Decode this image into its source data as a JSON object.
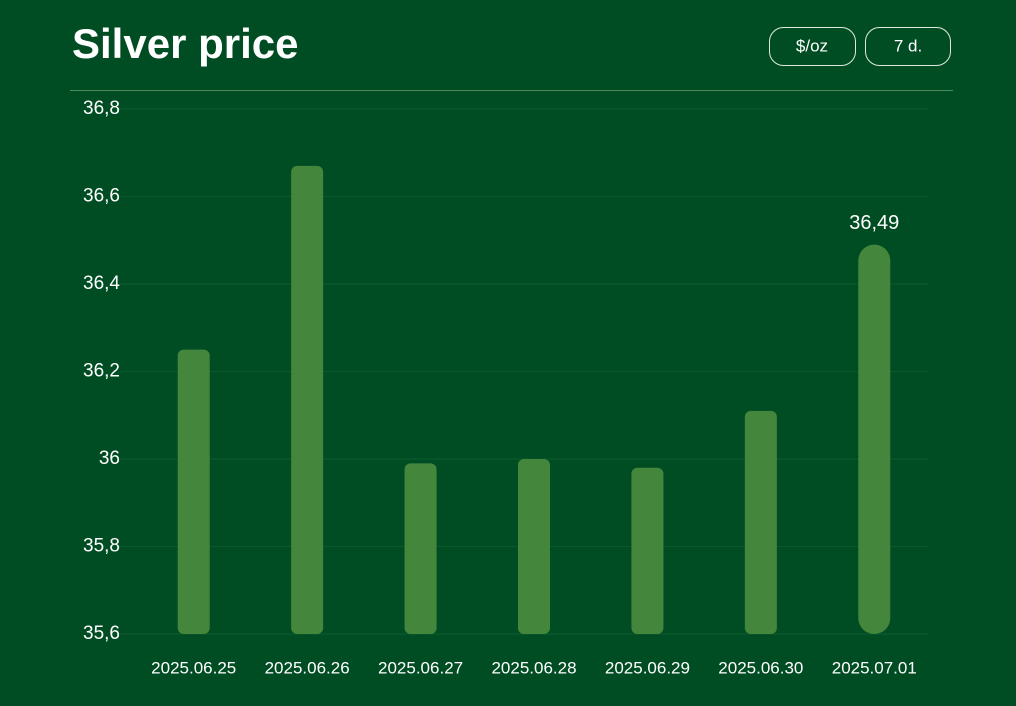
{
  "chart_data": {
    "type": "bar",
    "title": "Silver price",
    "controls": [
      "$/oz",
      "7 d."
    ],
    "categories": [
      "2025.06.25",
      "2025.06.26",
      "2025.06.27",
      "2025.06.28",
      "2025.06.29",
      "2025.06.30",
      "2025.07.01"
    ],
    "values": [
      36.25,
      36.67,
      35.99,
      36.0,
      35.98,
      36.11,
      36.49
    ],
    "value_labels": [
      null,
      null,
      null,
      null,
      null,
      null,
      "36,49"
    ],
    "color": "#45863d",
    "ylim": [
      35.6,
      36.8
    ],
    "yticks": [
      {
        "value": 35.6,
        "label": "35,6"
      },
      {
        "value": 35.8,
        "label": "35,8"
      },
      36,
      {
        "value": 36.2,
        "label": "36,2"
      },
      {
        "value": 36.4,
        "label": "36,4"
      },
      {
        "value": 36.6,
        "label": "36,6"
      },
      {
        "value": 36.8,
        "label": "36,8"
      }
    ],
    "grid": true
  }
}
